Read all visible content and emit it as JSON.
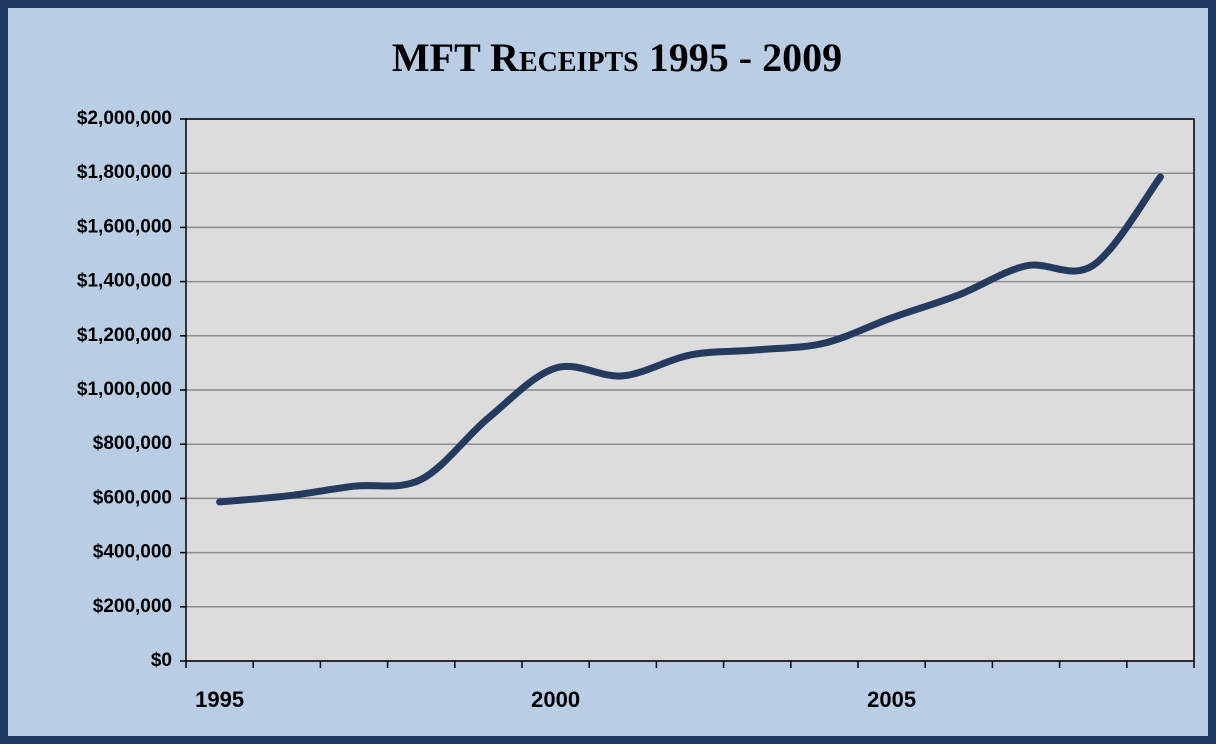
{
  "chart_data": {
    "type": "line",
    "title": "MFT Receipts 1995 - 2009",
    "categories": [
      "1995",
      null,
      null,
      null,
      null,
      "2000",
      null,
      null,
      null,
      null,
      "2005",
      null,
      null,
      null,
      null
    ],
    "series": [
      {
        "name": "MFT Receipts",
        "color": "#243a5e",
        "values": [
          587000,
          609000,
          645000,
          670000,
          897000,
          1081000,
          1052000,
          1129000,
          1148000,
          1173000,
          1266000,
          1351000,
          1458000,
          1460000,
          1786000
        ]
      }
    ],
    "ylim": [
      0,
      2000000
    ],
    "yticks": [
      {
        "value": 0,
        "label": "$0"
      },
      {
        "value": 200000,
        "label": "$200,000"
      },
      {
        "value": 400000,
        "label": "$400,000"
      },
      {
        "value": 600000,
        "label": "$600,000"
      },
      {
        "value": 800000,
        "label": "$800,000"
      },
      {
        "value": 1000000,
        "label": "$1,000,000"
      },
      {
        "value": 1200000,
        "label": "$1,200,000"
      },
      {
        "value": 1400000,
        "label": "$1,400,000"
      },
      {
        "value": 1600000,
        "label": "$1,600,000"
      },
      {
        "value": 1800000,
        "label": "$1,800,000"
      },
      {
        "value": 2000000,
        "label": "$2,000,000"
      }
    ],
    "grid": true
  }
}
